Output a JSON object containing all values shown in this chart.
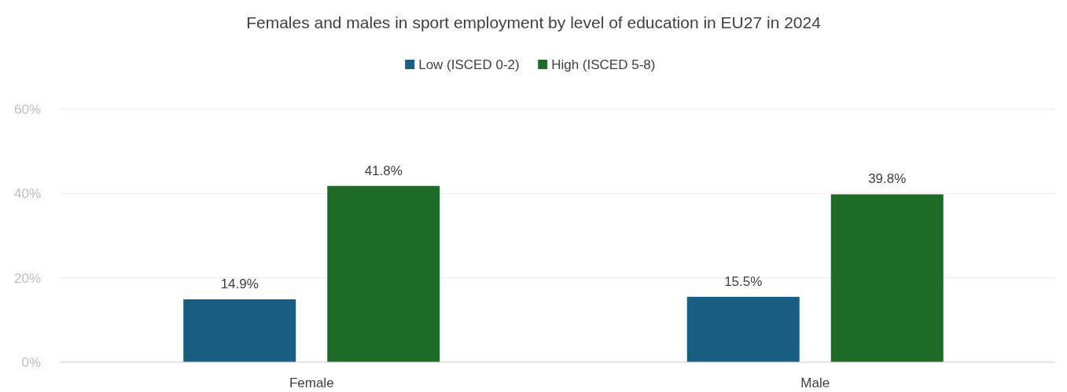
{
  "chart_data": {
    "type": "bar",
    "title": "Females and males in sport employment by level of education in EU27 in 2024",
    "categories": [
      "Female",
      "Male"
    ],
    "series": [
      {
        "name": "Low (ISCED 0-2)",
        "color": "#175e82",
        "values": [
          14.9,
          15.5
        ],
        "value_labels": [
          "14.9%",
          "15.5%"
        ]
      },
      {
        "name": "High (ISCED 5-8)",
        "color": "#1e6b27",
        "values": [
          41.8,
          39.8
        ],
        "value_labels": [
          "41.8%",
          "39.8%"
        ]
      }
    ],
    "ylim": [
      0,
      60
    ],
    "yticks": [
      {
        "value": 0,
        "label": "0%"
      },
      {
        "value": 20,
        "label": "20%"
      },
      {
        "value": 40,
        "label": "40%"
      },
      {
        "value": 60,
        "label": "60%"
      }
    ],
    "grid": "y",
    "legend": "top"
  }
}
